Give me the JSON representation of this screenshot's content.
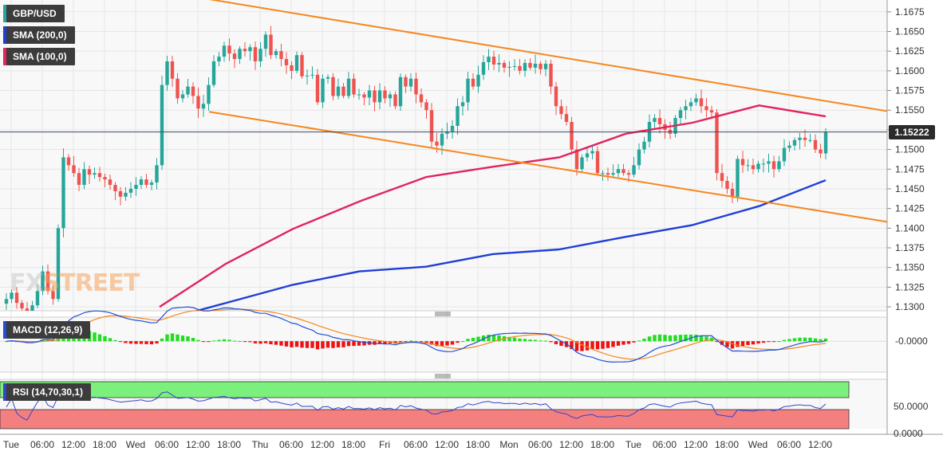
{
  "labels": {
    "symbol": "GBP/USD",
    "sma200": "SMA (200,0)",
    "sma100": "SMA (100,0)",
    "macd": "MACD (12,26,9)",
    "rsi": "RSI (14,70,30,1)",
    "price_badge": "1.15222",
    "logo_main": "FX",
    "logo_accent": "STREET"
  },
  "colors": {
    "up": "#26a69a",
    "down": "#ef5350",
    "sma200": "#1f3ed6",
    "sma100": "#e0245e",
    "channel": "#f5871f",
    "macd_line": "#2050d8",
    "signal_line": "#f5871f",
    "hist_pos": "#22dd22",
    "hist_neg": "#ee1111",
    "rsi_line": "#3344cc",
    "rsi_overbought": "#7cf07c",
    "rsi_oversold": "#f47f7f"
  },
  "chart_data": {
    "type": "candlestick",
    "price_axis": {
      "min": 1.1295,
      "max": 1.169,
      "ticks": [
        "1.1675",
        "1.1650",
        "1.1625",
        "1.1600",
        "1.1575",
        "1.1550",
        "1.1525",
        "1.1500",
        "1.1475",
        "1.1450",
        "1.1425",
        "1.1400",
        "1.1375",
        "1.1350",
        "1.1325",
        "1.1300"
      ]
    },
    "time_axis": {
      "labels": [
        "Tue",
        "06:00",
        "12:00",
        "18:00",
        "Wed",
        "06:00",
        "12:00",
        "18:00",
        "Thu",
        "06:00",
        "12:00",
        "18:00",
        "Fri",
        "06:00",
        "12:00",
        "18:00",
        "Mon",
        "06:00",
        "12:00",
        "18:00",
        "Tue",
        "06:00",
        "12:00",
        "18:00",
        "Wed",
        "06:00",
        "12:00"
      ],
      "bars_per_label": 6
    },
    "last_price": 1.15222,
    "candles_close": [
      1.131,
      1.1318,
      1.1305,
      1.1298,
      1.1292,
      1.1302,
      1.132,
      1.1345,
      1.132,
      1.131,
      1.14,
      1.149,
      1.148,
      1.147,
      1.1455,
      1.1475,
      1.1468,
      1.147,
      1.1465,
      1.1462,
      1.1455,
      1.1447,
      1.144,
      1.1445,
      1.145,
      1.1455,
      1.1462,
      1.1455,
      1.1458,
      1.148,
      1.1582,
      1.1612,
      1.159,
      1.1565,
      1.157,
      1.158,
      1.1568,
      1.1552,
      1.1558,
      1.1582,
      1.1612,
      1.1618,
      1.1632,
      1.1622,
      1.1615,
      1.1628,
      1.1625,
      1.163,
      1.1612,
      1.1628,
      1.1646,
      1.162,
      1.1625,
      1.1615,
      1.1607,
      1.16,
      1.162,
      1.1593,
      1.1594,
      1.1595,
      1.156,
      1.159,
      1.1592,
      1.1568,
      1.158,
      1.1568,
      1.159,
      1.157,
      1.157,
      1.1566,
      1.1575,
      1.156,
      1.1575,
      1.1565,
      1.157,
      1.1555,
      1.1592,
      1.158,
      1.159,
      1.157,
      1.156,
      1.155,
      1.151,
      1.1505,
      1.152,
      1.1523,
      1.153,
      1.1555,
      1.156,
      1.159,
      1.158,
      1.1595,
      1.1611,
      1.1618,
      1.1608,
      1.161,
      1.1604,
      1.1605,
      1.1606,
      1.16,
      1.161,
      1.1604,
      1.1609,
      1.1602,
      1.1609,
      1.158,
      1.1555,
      1.1545,
      1.1535,
      1.15,
      1.1475,
      1.149,
      1.1495,
      1.1498,
      1.147,
      1.147,
      1.1468,
      1.147,
      1.1475,
      1.147,
      1.1468,
      1.148,
      1.15,
      1.151,
      1.1535,
      1.154,
      1.1532,
      1.1525,
      1.152,
      1.154,
      1.155,
      1.1555,
      1.156,
      1.1565,
      1.1555,
      1.155,
      1.1547,
      1.147,
      1.146,
      1.145,
      1.144,
      1.1488,
      1.148,
      1.148,
      1.1475,
      1.1482,
      1.1482,
      1.1485,
      1.1475,
      1.1485,
      1.1502,
      1.1505,
      1.1512,
      1.1515,
      1.1512,
      1.1512,
      1.15,
      1.1495,
      1.1522
    ],
    "sma200": [
      [
        1.1255,
        1.1282
      ],
      [
        1.1315,
        1.1305
      ],
      [
        1.135,
        1.1328
      ],
      [
        1.1385,
        1.1345
      ],
      [
        1.1405,
        1.1351
      ],
      [
        1.145,
        1.1367
      ],
      [
        1.15,
        1.1373
      ],
      [
        1.1508,
        1.1389
      ],
      [
        1.156,
        1.1404
      ],
      [
        1.164,
        1.1428
      ]
    ],
    "sma200_end": 1.1461,
    "sma100": [
      [
        1.1255,
        1.13
      ],
      [
        1.1315,
        1.1355
      ],
      [
        1.136,
        1.1399
      ],
      [
        1.14,
        1.1434
      ],
      [
        1.145,
        1.1465
      ],
      [
        1.15,
        1.1478
      ],
      [
        1.1555,
        1.149
      ],
      [
        1.16,
        1.152
      ],
      [
        1.164,
        1.1534
      ],
      [
        1.169,
        1.1556
      ]
    ],
    "sma100_end": 1.1542,
    "channel_upper": [
      1.1691,
      1.1544
    ],
    "channel_lower": [
      1.1548,
      1.1408
    ],
    "macd": {
      "zero_label": "-0.0000",
      "range": [
        -0.0045,
        0.0035
      ]
    },
    "rsi": {
      "ticks": [
        "50.0000",
        "0.0000"
      ],
      "overbought": 70,
      "oversold": 30
    }
  }
}
